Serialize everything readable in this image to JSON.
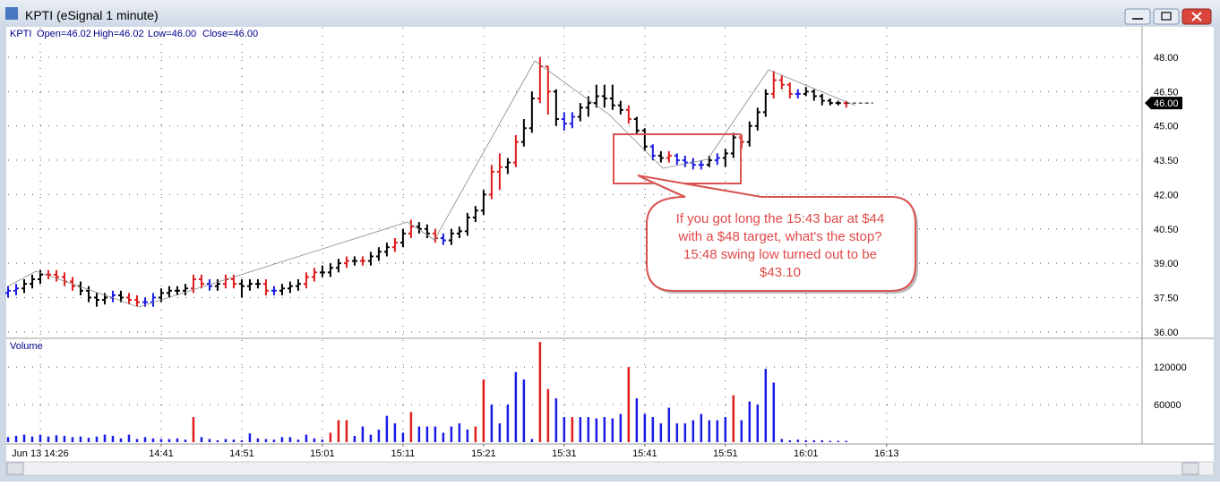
{
  "window": {
    "title": "KPTI (eSignal 1 minute)"
  },
  "chart_data": {
    "type": "ohlc",
    "header": {
      "symbol": "KPTI",
      "open": "Open=46.02",
      "high": "High=46.02",
      "low": "Low=46.00",
      "close": "Close=46.00"
    },
    "palette": {
      "k": "#000000",
      "r": "#e01b1b",
      "b": "#1a1ae6"
    },
    "open": [
      37.7,
      37.8,
      37.9,
      38.1,
      38.3,
      38.5,
      38.5,
      38.4,
      38.2,
      38.0,
      37.8,
      37.5,
      37.4,
      37.5,
      37.6,
      37.5,
      37.4,
      37.3,
      37.3,
      37.5,
      37.7,
      37.8,
      37.8,
      37.9,
      38.3,
      38.1,
      38.0,
      38.1,
      38.3,
      38.1,
      38.0,
      38.1,
      38.1,
      37.8,
      37.8,
      37.9,
      38.0,
      38.1,
      38.4,
      38.6,
      38.6,
      38.8,
      39.0,
      39.1,
      39.1,
      39.1,
      39.3,
      39.5,
      39.7,
      39.9,
      40.3,
      40.6,
      40.5,
      40.3,
      40.1,
      40.0,
      40.3,
      40.4,
      41.0,
      41.3,
      42.0,
      43.0,
      43.2,
      43.4,
      44.3,
      44.9,
      46.2,
      47.6,
      46.5,
      45.3,
      45.1,
      45.4,
      45.8,
      46.0,
      46.3,
      46.2,
      45.9,
      45.7,
      45.3,
      44.8,
      44.1,
      43.7,
      43.6,
      43.7,
      43.5,
      43.4,
      43.3,
      43.3,
      43.5,
      43.6,
      43.8,
      44.5,
      44.3,
      45.0,
      45.6,
      46.4,
      47.0,
      46.8,
      46.4,
      46.4,
      46.5,
      46.3,
      46.1,
      46.0,
      46.0
    ],
    "high": [
      38.0,
      38.1,
      38.3,
      38.5,
      38.7,
      38.7,
      38.7,
      38.6,
      38.4,
      38.2,
      38.0,
      37.7,
      37.7,
      37.8,
      37.8,
      37.7,
      37.6,
      37.5,
      37.7,
      37.9,
      38.0,
      38.0,
      38.1,
      38.5,
      38.5,
      38.3,
      38.3,
      38.5,
      38.5,
      38.3,
      38.3,
      38.3,
      38.3,
      38.0,
      38.1,
      38.2,
      38.3,
      38.6,
      38.8,
      38.9,
      39.0,
      39.2,
      39.3,
      39.3,
      39.3,
      39.5,
      39.7,
      39.9,
      40.1,
      40.5,
      40.9,
      40.8,
      40.7,
      40.5,
      40.3,
      40.5,
      40.6,
      41.2,
      41.5,
      42.2,
      43.3,
      43.8,
      43.6,
      44.6,
      45.3,
      46.5,
      48.0,
      47.6,
      46.6,
      45.6,
      45.6,
      46.0,
      46.3,
      46.8,
      46.8,
      46.8,
      46.1,
      45.9,
      45.4,
      44.9,
      44.2,
      43.9,
      43.9,
      43.8,
      43.7,
      43.6,
      43.5,
      43.7,
      43.8,
      44.0,
      44.7,
      44.6,
      45.2,
      45.8,
      46.6,
      47.4,
      47.2,
      46.9,
      46.6,
      46.7,
      46.6,
      46.4,
      46.2,
      46.1,
      46.1
    ],
    "low": [
      37.5,
      37.6,
      37.7,
      37.9,
      38.1,
      38.3,
      38.2,
      38.0,
      37.8,
      37.6,
      37.3,
      37.1,
      37.2,
      37.3,
      37.3,
      37.2,
      37.1,
      37.1,
      37.1,
      37.3,
      37.5,
      37.6,
      37.6,
      37.7,
      37.9,
      37.8,
      37.8,
      37.9,
      37.9,
      37.5,
      37.8,
      37.9,
      37.6,
      37.6,
      37.6,
      37.7,
      37.8,
      37.9,
      38.2,
      38.4,
      38.4,
      38.6,
      38.8,
      38.9,
      38.9,
      38.9,
      39.1,
      39.3,
      39.5,
      39.7,
      40.1,
      40.3,
      40.1,
      39.9,
      39.8,
      39.8,
      40.1,
      40.2,
      40.8,
      41.1,
      41.8,
      42.2,
      42.9,
      43.2,
      44.1,
      44.7,
      46.0,
      45.5,
      45.0,
      44.8,
      44.9,
      45.2,
      45.4,
      45.8,
      45.8,
      45.7,
      45.5,
      45.1,
      44.6,
      43.9,
      43.5,
      43.4,
      43.4,
      43.3,
      43.2,
      43.1,
      43.1,
      43.2,
      43.3,
      43.2,
      43.6,
      44.0,
      44.1,
      44.8,
      45.4,
      46.2,
      46.6,
      46.2,
      46.2,
      46.3,
      46.1,
      45.9,
      45.9,
      45.9,
      45.8
    ],
    "close": [
      37.8,
      37.9,
      38.1,
      38.3,
      38.5,
      38.5,
      38.4,
      38.2,
      38.0,
      37.8,
      37.5,
      37.4,
      37.5,
      37.6,
      37.5,
      37.4,
      37.3,
      37.3,
      37.5,
      37.7,
      37.8,
      37.8,
      37.9,
      38.3,
      38.1,
      38.0,
      38.1,
      38.3,
      38.1,
      38.0,
      38.1,
      38.1,
      37.8,
      37.8,
      37.9,
      38.0,
      38.1,
      38.4,
      38.6,
      38.6,
      38.8,
      39.0,
      39.1,
      39.1,
      39.1,
      39.3,
      39.5,
      39.7,
      39.9,
      40.3,
      40.6,
      40.5,
      40.3,
      40.1,
      40.0,
      40.3,
      40.4,
      41.0,
      41.3,
      42.0,
      43.0,
      43.2,
      43.4,
      44.3,
      44.9,
      46.2,
      47.6,
      46.5,
      45.3,
      45.1,
      45.4,
      45.8,
      46.0,
      46.3,
      46.2,
      45.9,
      45.7,
      45.3,
      44.8,
      44.1,
      43.7,
      43.6,
      43.7,
      43.5,
      43.4,
      43.3,
      43.3,
      43.5,
      43.6,
      43.8,
      44.5,
      44.3,
      45.0,
      45.6,
      46.4,
      47.0,
      46.8,
      46.4,
      46.4,
      46.5,
      46.3,
      46.1,
      46.0,
      46.0,
      46.0
    ],
    "bar_colors": [
      "b",
      "b",
      "k",
      "k",
      "k",
      "r",
      "r",
      "r",
      "r",
      "k",
      "k",
      "k",
      "k",
      "b",
      "k",
      "r",
      "r",
      "b",
      "b",
      "k",
      "k",
      "k",
      "k",
      "r",
      "r",
      "b",
      "k",
      "r",
      "r",
      "k",
      "k",
      "k",
      "r",
      "b",
      "k",
      "k",
      "k",
      "r",
      "r",
      "k",
      "k",
      "k",
      "r",
      "k",
      "r",
      "k",
      "k",
      "k",
      "r",
      "k",
      "r",
      "k",
      "k",
      "r",
      "b",
      "k",
      "k",
      "k",
      "k",
      "k",
      "r",
      "r",
      "k",
      "r",
      "k",
      "k",
      "r",
      "r",
      "k",
      "b",
      "b",
      "k",
      "k",
      "k",
      "k",
      "k",
      "k",
      "r",
      "k",
      "k",
      "b",
      "k",
      "r",
      "b",
      "b",
      "b",
      "b",
      "k",
      "b",
      "k",
      "k",
      "r",
      "k",
      "k",
      "k",
      "r",
      "r",
      "r",
      "b",
      "k",
      "k",
      "k",
      "k",
      "k",
      "r"
    ],
    "xlim": [
      0,
      140.7
    ],
    "xticks": [
      {
        "value": 4,
        "label": "Jun 13 14:26"
      },
      {
        "value": 19,
        "label": "14:41"
      },
      {
        "value": 29,
        "label": "14:51"
      },
      {
        "value": 39,
        "label": "15:01"
      },
      {
        "value": 49,
        "label": "15:11"
      },
      {
        "value": 59,
        "label": "15:21"
      },
      {
        "value": 69,
        "label": "15:31"
      },
      {
        "value": 79,
        "label": "15:41"
      },
      {
        "value": 89,
        "label": "15:51"
      },
      {
        "value": 99,
        "label": "16:01"
      },
      {
        "value": 109,
        "label": "16:13"
      }
    ],
    "ylim": [
      35.72,
      49.29
    ],
    "yticks": [
      {
        "value": 36,
        "label": "36.00"
      },
      {
        "value": 37.5,
        "label": "37.50"
      },
      {
        "value": 39,
        "label": "39.00"
      },
      {
        "value": 40.5,
        "label": "40.50"
      },
      {
        "value": 42,
        "label": "42.00"
      },
      {
        "value": 43.5,
        "label": "43.50"
      },
      {
        "value": 45,
        "label": "45.00"
      },
      {
        "value": 46.5,
        "label": "46.50"
      },
      {
        "value": 48,
        "label": "48.00"
      }
    ],
    "grid": true,
    "last_price": {
      "value": 46,
      "label": "46.00"
    },
    "volume": {
      "title": "Volume",
      "values": [
        8000,
        10000,
        12000,
        9000,
        12000,
        9000,
        11000,
        10000,
        8000,
        9000,
        7000,
        9000,
        12000,
        10000,
        6000,
        12000,
        5000,
        8000,
        6000,
        5000,
        5000,
        6000,
        4000,
        40000,
        8000,
        5000,
        3000,
        5000,
        4000,
        3000,
        14000,
        6000,
        5000,
        4000,
        8000,
        8000,
        4000,
        12000,
        6000,
        4000,
        15000,
        35000,
        35000,
        10000,
        25000,
        12000,
        20000,
        42000,
        30000,
        15000,
        48000,
        25000,
        25000,
        25000,
        15000,
        25000,
        30000,
        20000,
        25000,
        100000,
        60000,
        30000,
        60000,
        112000,
        100000,
        5000,
        160000,
        85000,
        70000,
        40000,
        40000,
        40000,
        40000,
        38000,
        40000,
        38000,
        45000,
        120000,
        70000,
        45000,
        40000,
        30000,
        55000,
        30000,
        30000,
        35000,
        45000,
        35000,
        35000,
        40000,
        75000,
        35000,
        65000,
        60000,
        117000,
        95000,
        5000,
        3000,
        4000,
        3000,
        3000,
        3000,
        2000,
        2000,
        2000
      ],
      "colors": [
        "b",
        "b",
        "b",
        "b",
        "b",
        "b",
        "b",
        "b",
        "b",
        "b",
        "b",
        "b",
        "b",
        "b",
        "b",
        "b",
        "b",
        "b",
        "b",
        "b",
        "b",
        "b",
        "b",
        "r",
        "b",
        "b",
        "b",
        "b",
        "b",
        "b",
        "b",
        "b",
        "b",
        "b",
        "b",
        "b",
        "b",
        "b",
        "b",
        "b",
        "r",
        "r",
        "r",
        "b",
        "b",
        "b",
        "b",
        "b",
        "b",
        "b",
        "r",
        "b",
        "b",
        "b",
        "b",
        "b",
        "b",
        "b",
        "r",
        "r",
        "b",
        "b",
        "b",
        "b",
        "b",
        "b",
        "r",
        "r",
        "b",
        "b",
        "r",
        "b",
        "b",
        "b",
        "b",
        "b",
        "b",
        "r",
        "b",
        "b",
        "b",
        "b",
        "b",
        "b",
        "b",
        "b",
        "b",
        "b",
        "b",
        "b",
        "r",
        "b",
        "b",
        "b",
        "b",
        "b",
        "b",
        "b",
        "b",
        "b",
        "b",
        "b",
        "b",
        "b",
        "b"
      ],
      "ylim": [
        0,
        163000
      ],
      "yticks": [
        60000,
        120000
      ]
    },
    "annotation": {
      "lines": [
        "If you got long the 15:43 bar at $44",
        "with a $48 target, what's the stop?",
        "15:48 swing low turned out to be",
        "$43.10"
      ]
    }
  }
}
